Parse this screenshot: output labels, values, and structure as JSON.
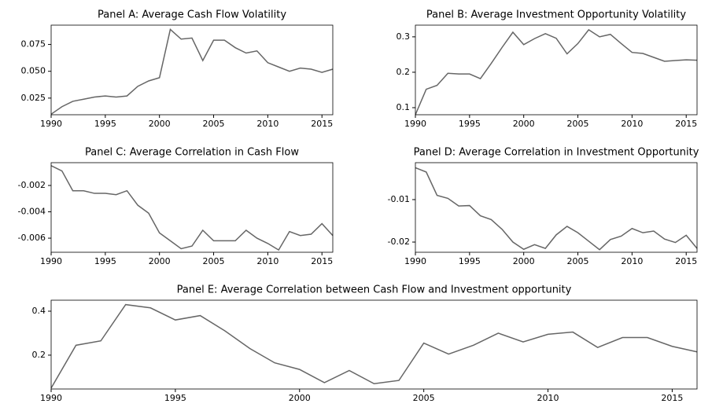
{
  "chart_data": [
    {
      "type": "line",
      "title": "Panel A: Average Cash Flow Volatility",
      "x": [
        1990,
        1991,
        1992,
        1993,
        1994,
        1995,
        1996,
        1997,
        1998,
        1999,
        2000,
        2001,
        2002,
        2003,
        2004,
        2005,
        2006,
        2007,
        2008,
        2009,
        2010,
        2011,
        2012,
        2013,
        2014,
        2015,
        2016
      ],
      "values": [
        0.01,
        0.017,
        0.022,
        0.024,
        0.026,
        0.027,
        0.026,
        0.027,
        0.036,
        0.041,
        0.044,
        0.089,
        0.08,
        0.081,
        0.06,
        0.079,
        0.079,
        0.072,
        0.067,
        0.069,
        0.058,
        0.054,
        0.05,
        0.053,
        0.052,
        0.049,
        0.052
      ],
      "color": "#666666",
      "xlim": [
        1990,
        2016
      ],
      "xticks": [
        1990,
        1995,
        2000,
        2005,
        2010,
        2015
      ],
      "ylim": [
        0.0095,
        0.093
      ],
      "yticks": [
        0.025,
        {
          "value": 0.05,
          "label": "0.050"
        },
        0.075
      ]
    },
    {
      "type": "line",
      "title": "Panel B: Average Investment Opportunity Volatility",
      "x": [
        1990,
        1991,
        1992,
        1993,
        1994,
        1995,
        1996,
        1997,
        1998,
        1999,
        2000,
        2001,
        2002,
        2003,
        2004,
        2005,
        2006,
        2007,
        2008,
        2009,
        2010,
        2011,
        2012,
        2013,
        2014,
        2015,
        2016
      ],
      "values": [
        0.08,
        0.152,
        0.163,
        0.197,
        0.195,
        0.195,
        0.182,
        0.225,
        0.27,
        0.313,
        0.278,
        0.295,
        0.309,
        0.296,
        0.252,
        0.281,
        0.32,
        0.3,
        0.307,
        0.281,
        0.256,
        0.253,
        0.242,
        0.231,
        0.233,
        0.235,
        0.234
      ],
      "color": "#666666",
      "xlim": [
        1990,
        2016
      ],
      "xticks": [
        1990,
        1995,
        2000,
        2005,
        2010,
        2015
      ],
      "ylim": [
        0.08,
        0.333
      ],
      "yticks": [
        0.1,
        0.2,
        0.3
      ]
    },
    {
      "type": "line",
      "title": "Panel C: Average Correlation in Cash Flow",
      "x": [
        1990,
        1991,
        1992,
        1993,
        1994,
        1995,
        1996,
        1997,
        1998,
        1999,
        2000,
        2001,
        2002,
        2003,
        2004,
        2005,
        2006,
        2007,
        2008,
        2009,
        2010,
        2011,
        2012,
        2013,
        2014,
        2015,
        2016
      ],
      "values": [
        -0.0005,
        -0.0009,
        -0.0024,
        -0.0024,
        -0.0026,
        -0.0026,
        -0.0027,
        -0.0024,
        -0.0035,
        -0.0041,
        -0.0056,
        -0.0062,
        -0.0068,
        -0.0066,
        -0.0054,
        -0.0062,
        -0.0062,
        -0.0062,
        -0.0054,
        -0.006,
        -0.0064,
        -0.0069,
        -0.0055,
        -0.0058,
        -0.0057,
        -0.0049,
        -0.0058
      ],
      "color": "#666666",
      "xlim": [
        1990,
        2016
      ],
      "xticks": [
        1990,
        1995,
        2000,
        2005,
        2010,
        2015
      ],
      "ylim": [
        -0.00707,
        -0.00027
      ],
      "yticks": [
        -0.006,
        -0.004,
        -0.002
      ]
    },
    {
      "type": "line",
      "title": "Panel D: Average Correlation in Investment Opportunity",
      "x": [
        1990,
        1991,
        1992,
        1993,
        1994,
        1995,
        1996,
        1997,
        1998,
        1999,
        2000,
        2001,
        2002,
        2003,
        2004,
        2005,
        2006,
        2007,
        2008,
        2009,
        2010,
        2011,
        2012,
        2013,
        2014,
        2015,
        2016
      ],
      "values": [
        -0.0025,
        -0.0035,
        -0.009,
        -0.0097,
        -0.0115,
        -0.0114,
        -0.0138,
        -0.0147,
        -0.017,
        -0.02,
        -0.0217,
        -0.0206,
        -0.0215,
        -0.0183,
        -0.0163,
        -0.0178,
        -0.0198,
        -0.0218,
        -0.0194,
        -0.0186,
        -0.0168,
        -0.0178,
        -0.0174,
        -0.0193,
        -0.0201,
        -0.0184,
        -0.0215
      ],
      "color": "#666666",
      "xlim": [
        1990,
        2016
      ],
      "xticks": [
        1990,
        1995,
        2000,
        2005,
        2010,
        2015
      ],
      "ylim": [
        -0.0224,
        -0.0013
      ],
      "yticks": [
        -0.02,
        -0.01
      ]
    },
    {
      "type": "line",
      "title": "Panel E: Average Correlation between Cash Flow and Investment opportunity",
      "x": [
        1990,
        1991,
        1992,
        1993,
        1994,
        1995,
        1996,
        1997,
        1998,
        1999,
        2000,
        2001,
        2002,
        2003,
        2004,
        2005,
        2006,
        2007,
        2008,
        2009,
        2010,
        2011,
        2012,
        2013,
        2014,
        2015,
        2016
      ],
      "values": [
        0.05,
        0.245,
        0.265,
        0.43,
        0.415,
        0.36,
        0.38,
        0.31,
        0.23,
        0.165,
        0.135,
        0.075,
        0.13,
        0.07,
        0.085,
        0.255,
        0.205,
        0.245,
        0.3,
        0.26,
        0.295,
        0.305,
        0.235,
        0.28,
        0.28,
        0.24,
        0.215
      ],
      "color": "#666666",
      "xlim": [
        1990,
        2016
      ],
      "xticks": [
        1990,
        1995,
        2000,
        2005,
        2010,
        2015
      ],
      "ylim": [
        0.046,
        0.45
      ],
      "yticks": [
        0.2,
        0.4
      ]
    }
  ]
}
